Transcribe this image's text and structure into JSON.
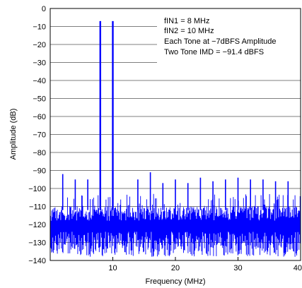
{
  "chart_data": {
    "type": "line",
    "title": "",
    "xlabel": "Frequency (MHz)",
    "ylabel": "Amplitude (dB)",
    "xlim": [
      0,
      40
    ],
    "ylim": [
      -140,
      0
    ],
    "x_ticks": [
      10,
      20,
      30,
      40
    ],
    "x_tick_labels": [
      "10",
      "20",
      "30",
      "40"
    ],
    "y_ticks": [
      0,
      -10,
      -20,
      -30,
      -40,
      -50,
      -60,
      -70,
      -80,
      -90,
      -100,
      -110,
      -120,
      -130,
      -140
    ],
    "y_tick_labels": [
      "0",
      "−10",
      "−20",
      "−30",
      "−40",
      "−50",
      "−60",
      "−70",
      "−80",
      "−90",
      "−100",
      "−110",
      "−120",
      "−130",
      "−140"
    ],
    "grid": "horizontal",
    "line_color": "#0000ff",
    "noise_floor": {
      "typical_top": -110,
      "peak_top": -103,
      "bottom": -138
    },
    "tones": [
      {
        "x": 8,
        "y": -7
      },
      {
        "x": 10,
        "y": -7
      }
    ],
    "spurs": [
      {
        "x": 2,
        "y": -92
      },
      {
        "x": 4,
        "y": -95
      },
      {
        "x": 6,
        "y": -95
      },
      {
        "x": 14,
        "y": -95
      },
      {
        "x": 16,
        "y": -91
      },
      {
        "x": 18,
        "y": -97
      },
      {
        "x": 20,
        "y": -95
      },
      {
        "x": 22,
        "y": -97
      },
      {
        "x": 24,
        "y": -94
      },
      {
        "x": 26,
        "y": -96
      },
      {
        "x": 28,
        "y": -95
      },
      {
        "x": 30,
        "y": -94
      },
      {
        "x": 32,
        "y": -95
      },
      {
        "x": 34,
        "y": -95
      },
      {
        "x": 36,
        "y": -96
      },
      {
        "x": 38,
        "y": -96
      }
    ],
    "annotations": [
      "fIN1 = 8 MHz",
      "fIN2 = 10 MHz",
      "Each Tone at −7dBFS Amplitude",
      "Two Tone IMD = −91.4 dBFS"
    ]
  }
}
